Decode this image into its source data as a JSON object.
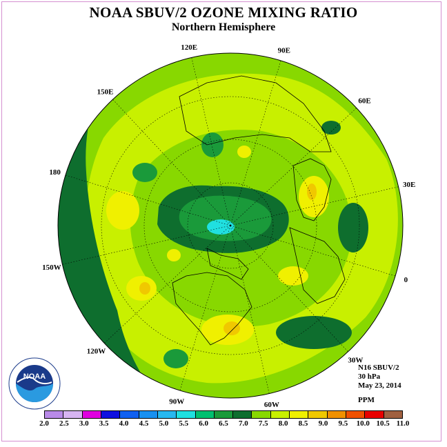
{
  "title": "NOAA SBUV/2 OZONE MIXING RATIO",
  "subtitle": "Northern Hemisphere",
  "info": {
    "instrument": "N16 SBUV/2",
    "level": "30 hPa",
    "date": "May 23, 2014",
    "units": "PPM"
  },
  "logo": {
    "text": "NOAA",
    "icon": "noaa-logo-icon"
  },
  "longitude_labels": [
    "90E",
    "60E",
    "30E",
    "0",
    "30W",
    "60W",
    "90W",
    "120W",
    "150W",
    "180",
    "150E",
    "120E"
  ],
  "colorbar": {
    "ticks": [
      "2.0",
      "2.5",
      "3.0",
      "3.5",
      "4.0",
      "4.5",
      "5.0",
      "5.5",
      "6.0",
      "6.5",
      "7.0",
      "7.5",
      "8.0",
      "8.5",
      "9.0",
      "9.5",
      "10.0",
      "10.5",
      "11.0"
    ],
    "colors": [
      "#b98ae8",
      "#d7b4f2",
      "#e000e0",
      "#1010e0",
      "#1060f0",
      "#1890f0",
      "#28b8f0",
      "#20e0e0",
      "#00c070",
      "#1a9a3a",
      "#0e6e2e",
      "#88d800",
      "#c8f000",
      "#f0f000",
      "#f0c800",
      "#f09000",
      "#f05000",
      "#e80000",
      "#a06040"
    ]
  },
  "map_colors": {
    "background": "#88d800",
    "light_band": "#c8f000",
    "mid_dark": "#1a9a3a",
    "dark": "#0e6e2e",
    "yellow": "#f0f000",
    "orange": "#f0c800",
    "cyan": "#20e0e0"
  }
}
